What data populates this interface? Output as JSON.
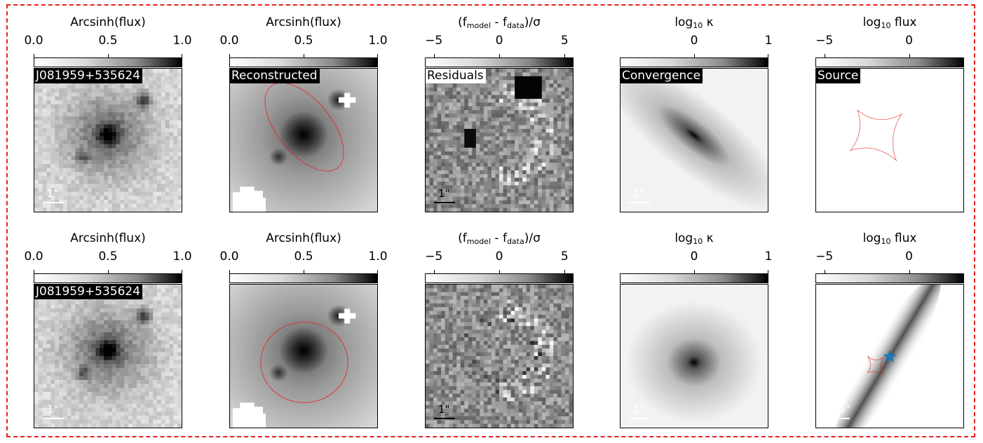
{
  "figure": {
    "border_color": "#e8211d",
    "rows": [
      {
        "panels": [
          {
            "cb_title_main": "Arcsinh(flux)",
            "cb_title_sub": "",
            "cb_title_tail": "",
            "ticks": [
              "0.0",
              "0.5",
              "1.0"
            ],
            "colormap": "gray_r",
            "label": "J081959+535624",
            "label_style": "dark",
            "scale_text": "1\"",
            "scale_color": "white",
            "content": "data-image"
          },
          {
            "cb_title_main": "Arcsinh(flux)",
            "cb_title_sub": "",
            "cb_title_tail": "",
            "ticks": [
              "0.0",
              "0.5",
              "1.0"
            ],
            "colormap": "gray_r",
            "label": "Reconstructed",
            "label_style": "dark",
            "scale_text": "",
            "scale_color": "white",
            "content": "model-image",
            "critical_curve": "elongated"
          },
          {
            "cb_title_main": "(f",
            "cb_title_sub": "model",
            "cb_title_mid": " - f",
            "cb_title_sub2": "data",
            "cb_title_tail": ")/σ",
            "ticks": [
              "−5",
              "0",
              "5"
            ],
            "colormap": "gray_r",
            "label": "Residuals",
            "label_style": "light",
            "scale_text": "1\"",
            "scale_color": "black",
            "content": "residual-image"
          },
          {
            "cb_title_main": "log",
            "cb_title_sub": "10",
            "cb_title_tail": " κ",
            "ticks": [
              "0",
              "1"
            ],
            "colormap": "gray_r",
            "label": "Convergence",
            "label_style": "dark",
            "scale_text": "1\"",
            "scale_color": "white",
            "content": "convergence-map",
            "convergence_shape": "elongated"
          },
          {
            "cb_title_main": "log",
            "cb_title_sub": "10",
            "cb_title_tail": " flux",
            "ticks": [
              "−5",
              "0"
            ],
            "colormap": "gray_r",
            "label": "Source",
            "label_style": "dark",
            "scale_text": "",
            "scale_color": "white",
            "content": "source-plane",
            "caustic": "large"
          }
        ]
      },
      {
        "panels": [
          {
            "cb_title_main": "Arcsinh(flux)",
            "cb_title_sub": "",
            "cb_title_tail": "",
            "ticks": [
              "0.0",
              "0.5",
              "1.0"
            ],
            "colormap": "gray_r",
            "label": "J081959+535624",
            "label_style": "dark",
            "scale_text": "1\"",
            "scale_color": "white",
            "content": "data-image"
          },
          {
            "cb_title_main": "Arcsinh(flux)",
            "cb_title_sub": "",
            "cb_title_tail": "",
            "ticks": [
              "0.0",
              "0.5",
              "1.0"
            ],
            "colormap": "gray_r",
            "label": "",
            "label_style": "dark",
            "scale_text": "",
            "scale_color": "white",
            "content": "model-image",
            "critical_curve": "round"
          },
          {
            "cb_title_main": "(f",
            "cb_title_sub": "model",
            "cb_title_mid": " - f",
            "cb_title_sub2": "data",
            "cb_title_tail": ")/σ",
            "ticks": [
              "−5",
              "0",
              "5"
            ],
            "colormap": "gray_r",
            "label": "",
            "label_style": "light",
            "scale_text": "1\"",
            "scale_color": "black",
            "content": "residual-image"
          },
          {
            "cb_title_main": "log",
            "cb_title_sub": "10",
            "cb_title_tail": " κ",
            "ticks": [
              "0",
              "1"
            ],
            "colormap": "gray_r",
            "label": "",
            "label_style": "dark",
            "scale_text": "1\"",
            "scale_color": "white",
            "content": "convergence-map",
            "convergence_shape": "round"
          },
          {
            "cb_title_main": "log",
            "cb_title_sub": "10",
            "cb_title_tail": " flux",
            "ticks": [
              "−5",
              "0"
            ],
            "colormap": "gray_r",
            "label": "",
            "label_style": "dark",
            "scale_text": "0.5\"",
            "scale_color": "white",
            "content": "source-plane",
            "caustic": "small",
            "source_marker": "star",
            "star_color": "#1f77b4"
          }
        ]
      }
    ],
    "colors": {
      "critical_curve": "#e8211d",
      "star": "#1f77b4"
    }
  }
}
